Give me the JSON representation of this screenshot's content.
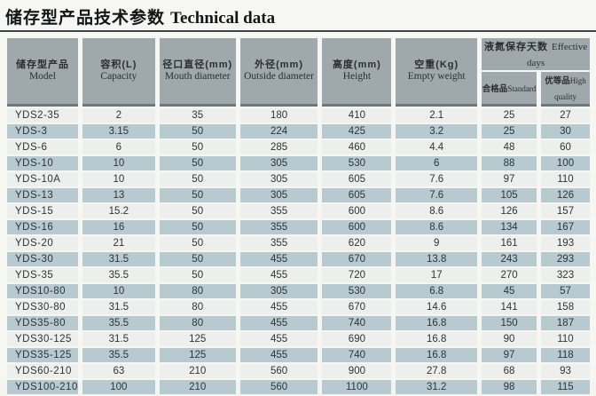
{
  "title": {
    "zh": "储存型产品技术参数",
    "en": "Technical data"
  },
  "table": {
    "headers": [
      {
        "zh": "储存型产品",
        "en": "Model"
      },
      {
        "zh": "容积(L)",
        "en": "Capacity"
      },
      {
        "zh": "径口直径(mm)",
        "en": "Mouth diameter"
      },
      {
        "zh": "外径(mm)",
        "en": "Outside diameter"
      },
      {
        "zh": "高度(mm)",
        "en": "Height"
      },
      {
        "zh": "空重(Kg)",
        "en": "Empty weight"
      }
    ],
    "group_header": {
      "zh": "液氮保存天数",
      "en": "Effective days",
      "sub": [
        {
          "zh": "合格品",
          "en": "Standard"
        },
        {
          "zh": "优等品",
          "en": "High quality"
        }
      ]
    },
    "rows": [
      [
        "YDS2-35",
        "2",
        "35",
        "180",
        "410",
        "2.1",
        "25",
        "27"
      ],
      [
        "YDS-3",
        "3.15",
        "50",
        "224",
        "425",
        "3.2",
        "25",
        "30"
      ],
      [
        "YDS-6",
        "6",
        "50",
        "285",
        "460",
        "4.4",
        "48",
        "60"
      ],
      [
        "YDS-10",
        "10",
        "50",
        "305",
        "530",
        "6",
        "88",
        "100"
      ],
      [
        "YDS-10A",
        "10",
        "50",
        "305",
        "605",
        "7.6",
        "97",
        "110"
      ],
      [
        "YDS-13",
        "13",
        "50",
        "305",
        "605",
        "7.6",
        "105",
        "126"
      ],
      [
        "YDS-15",
        "15.2",
        "50",
        "355",
        "600",
        "8.6",
        "126",
        "157"
      ],
      [
        "YDS-16",
        "16",
        "50",
        "355",
        "600",
        "8.6",
        "134",
        "167"
      ],
      [
        "YDS-20",
        "21",
        "50",
        "355",
        "620",
        "9",
        "161",
        "193"
      ],
      [
        "YDS-30",
        "31.5",
        "50",
        "455",
        "670",
        "13.8",
        "243",
        "293"
      ],
      [
        "YDS-35",
        "35.5",
        "50",
        "455",
        "720",
        "17",
        "270",
        "323"
      ],
      [
        "YDS10-80",
        "10",
        "80",
        "305",
        "530",
        "6.8",
        "45",
        "57"
      ],
      [
        "YDS30-80",
        "31.5",
        "80",
        "455",
        "670",
        "14.6",
        "141",
        "158"
      ],
      [
        "YDS35-80",
        "35.5",
        "80",
        "455",
        "740",
        "16.8",
        "150",
        "187"
      ],
      [
        "YDS30-125",
        "31.5",
        "125",
        "455",
        "690",
        "16.8",
        "90",
        "110"
      ],
      [
        "YDS35-125",
        "35.5",
        "125",
        "455",
        "740",
        "16.8",
        "97",
        "118"
      ],
      [
        "YDS60-210",
        "63",
        "210",
        "560",
        "900",
        "27.8",
        "68",
        "93"
      ],
      [
        "YDS100-210",
        "100",
        "210",
        "560",
        "1100",
        "31.2",
        "98",
        "115"
      ]
    ]
  },
  "colors": {
    "header_bg": "#9fa9ad",
    "header_border_dark": "#6d787c",
    "row_light": "#edefec",
    "row_blue": "#b6cad0",
    "text": "#2c3437",
    "rule": "#3d4346"
  }
}
